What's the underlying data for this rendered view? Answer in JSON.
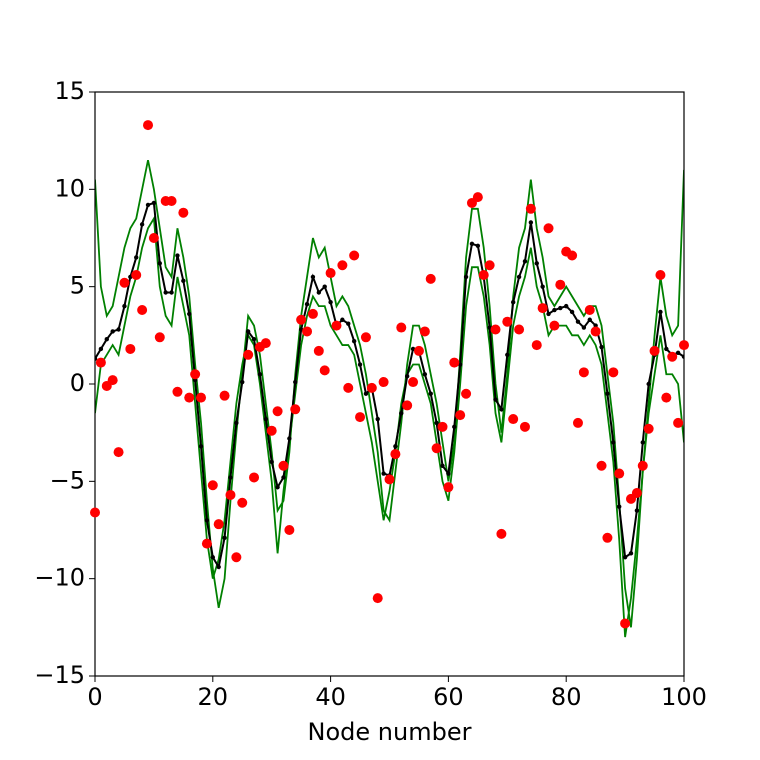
{
  "chart_data": {
    "type": "line",
    "xlabel": "Node number",
    "xlim": [
      0,
      100
    ],
    "xticks": [
      0,
      20,
      40,
      60,
      80,
      100
    ],
    "ylim": [
      -15,
      15
    ],
    "yticks": [
      {
        "value": -15,
        "label": "−15"
      },
      {
        "value": -10,
        "label": "−10"
      },
      {
        "value": -5,
        "label": "−5"
      },
      0,
      5,
      10,
      15
    ],
    "grid": false,
    "x": [
      0,
      1,
      2,
      3,
      4,
      5,
      6,
      7,
      8,
      9,
      10,
      11,
      12,
      13,
      14,
      15,
      16,
      17,
      18,
      19,
      20,
      21,
      22,
      23,
      24,
      25,
      26,
      27,
      28,
      29,
      30,
      31,
      32,
      33,
      34,
      35,
      36,
      37,
      38,
      39,
      40,
      41,
      42,
      43,
      44,
      45,
      46,
      47,
      48,
      49,
      50,
      51,
      52,
      53,
      54,
      55,
      56,
      57,
      58,
      59,
      60,
      61,
      62,
      63,
      64,
      65,
      66,
      67,
      68,
      69,
      70,
      71,
      72,
      73,
      74,
      75,
      76,
      77,
      78,
      79,
      80,
      81,
      82,
      83,
      84,
      85,
      86,
      87,
      88,
      89,
      90,
      91,
      92,
      93,
      94,
      95,
      96,
      97,
      98,
      99,
      100
    ],
    "series": [
      {
        "color": "#008000",
        "mode": "lines",
        "values": [
          10.5,
          5.0,
          3.5,
          4.0,
          5.5,
          7.0,
          8.0,
          8.5,
          10.0,
          11.5,
          10.0,
          8.0,
          6.0,
          5.5,
          8.0,
          6.5,
          4.5,
          1.0,
          -2.0,
          -6.0,
          -9.5,
          -11.5,
          -10.0,
          -6.0,
          -2.5,
          0.5,
          3.5,
          3.0,
          1.5,
          -1.0,
          -3.5,
          -6.5,
          -6.0,
          -3.5,
          0.5,
          3.5,
          5.5,
          7.5,
          6.5,
          7.0,
          5.5,
          4.0,
          4.5,
          4.0,
          3.0,
          2.0,
          0.5,
          -1.5,
          -3.5,
          -6.5,
          -7.0,
          -4.5,
          -2.0,
          1.0,
          3.0,
          3.0,
          2.0,
          0.5,
          -1.0,
          -3.0,
          -5.0,
          -3.0,
          1.5,
          6.5,
          9.0,
          9.0,
          7.0,
          4.0,
          0.0,
          -2.5,
          0.5,
          4.5,
          7.0,
          8.0,
          10.5,
          8.0,
          6.5,
          4.5,
          4.0,
          4.5,
          5.0,
          4.5,
          4.0,
          3.5,
          4.0,
          4.0,
          3.0,
          0.5,
          -2.0,
          -6.0,
          -10.5,
          -12.5,
          -9.0,
          -4.5,
          -1.0,
          2.5,
          5.5,
          3.5,
          2.5,
          3.0,
          11.0
        ]
      },
      {
        "color": "#008000",
        "mode": "lines",
        "values": [
          -1.5,
          1.0,
          1.5,
          2.0,
          1.5,
          3.0,
          4.5,
          5.5,
          7.0,
          8.0,
          8.5,
          5.0,
          3.5,
          3.0,
          5.5,
          4.0,
          2.5,
          -1.0,
          -4.5,
          -8.0,
          -10.0,
          -9.0,
          -7.0,
          -4.0,
          -1.0,
          1.0,
          2.5,
          2.0,
          0.0,
          -2.5,
          -5.0,
          -8.7,
          -5.5,
          -3.0,
          -0.5,
          2.0,
          3.5,
          4.5,
          4.0,
          4.0,
          3.0,
          2.5,
          2.0,
          2.0,
          1.5,
          0.0,
          -1.5,
          -3.0,
          -5.0,
          -7.0,
          -5.5,
          -3.5,
          -1.0,
          0.5,
          1.0,
          1.0,
          0.0,
          -1.0,
          -3.0,
          -5.0,
          -6.0,
          -3.5,
          0.0,
          4.0,
          6.0,
          6.0,
          4.5,
          2.0,
          -1.5,
          -3.0,
          0.0,
          3.0,
          4.5,
          5.5,
          7.0,
          5.0,
          4.0,
          2.5,
          3.0,
          3.0,
          3.0,
          2.5,
          2.5,
          2.0,
          2.5,
          2.0,
          1.0,
          -1.5,
          -4.0,
          -8.0,
          -13.0,
          -11.0,
          -8.0,
          -4.5,
          -1.5,
          0.5,
          2.5,
          0.5,
          0.5,
          0.0,
          -3.0
        ]
      },
      {
        "color": "#000000",
        "mode": "lines+markers",
        "values": [
          1.3,
          1.8,
          2.3,
          2.7,
          2.8,
          4.0,
          5.5,
          6.5,
          8.2,
          9.2,
          9.3,
          6.2,
          4.7,
          4.7,
          6.6,
          5.3,
          3.6,
          0.2,
          -3.2,
          -7.0,
          -8.9,
          -9.4,
          -7.9,
          -4.8,
          -2.0,
          0.1,
          2.7,
          2.3,
          0.5,
          -1.8,
          -4.0,
          -5.3,
          -4.8,
          -2.8,
          0.1,
          2.8,
          4.1,
          5.5,
          4.7,
          5.0,
          4.2,
          3.0,
          3.3,
          3.1,
          2.2,
          1.0,
          -0.5,
          -0.2,
          -1.8,
          -4.6,
          -4.7,
          -3.2,
          -1.5,
          0.4,
          1.8,
          1.7,
          0.5,
          -0.5,
          -2.0,
          -4.2,
          -4.6,
          -2.2,
          1.0,
          5.5,
          7.2,
          7.1,
          5.5,
          2.9,
          -0.8,
          -1.3,
          1.5,
          4.2,
          5.5,
          6.3,
          8.3,
          6.2,
          5.0,
          3.6,
          3.8,
          3.9,
          4.0,
          3.7,
          3.2,
          2.9,
          3.3,
          3.0,
          1.9,
          -0.5,
          -3.0,
          -6.3,
          -8.9,
          -8.7,
          -6.5,
          -3.0,
          0.0,
          1.5,
          3.7,
          1.8,
          1.5,
          1.6,
          1.4
        ]
      },
      {
        "color": "#ff0000",
        "mode": "markers",
        "values": [
          -6.6,
          1.1,
          -0.1,
          0.2,
          -3.5,
          5.2,
          1.8,
          5.6,
          3.8,
          13.3,
          7.5,
          2.4,
          9.4,
          9.4,
          -0.4,
          8.8,
          -0.7,
          0.5,
          -0.7,
          -8.2,
          -5.2,
          -7.2,
          -0.6,
          -5.7,
          -8.9,
          -6.1,
          1.5,
          -4.8,
          1.9,
          2.1,
          -2.4,
          -1.4,
          -4.2,
          -7.5,
          -1.3,
          3.3,
          2.7,
          3.6,
          1.7,
          0.7,
          5.7,
          3.0,
          6.1,
          -0.2,
          6.6,
          -1.7,
          2.4,
          -0.2,
          -11.0,
          0.1,
          -4.9,
          -3.6,
          2.9,
          -1.1,
          0.1,
          1.7,
          2.7,
          5.4,
          -3.3,
          -2.2,
          -5.3,
          1.1,
          -1.6,
          -0.5,
          9.3,
          9.6,
          5.6,
          6.1,
          2.8,
          -7.7,
          3.2,
          -1.8,
          2.8,
          -2.2,
          9.0,
          2.0,
          3.9,
          8.0,
          3.0,
          5.1,
          6.8,
          6.6,
          -2.0,
          0.6,
          3.8,
          2.7,
          -4.2,
          -7.9,
          0.6,
          -4.6,
          -12.3,
          -5.9,
          -5.6,
          -4.2,
          -2.3,
          1.7,
          5.6,
          -0.7,
          1.4,
          -2.0,
          2.0
        ]
      }
    ]
  }
}
